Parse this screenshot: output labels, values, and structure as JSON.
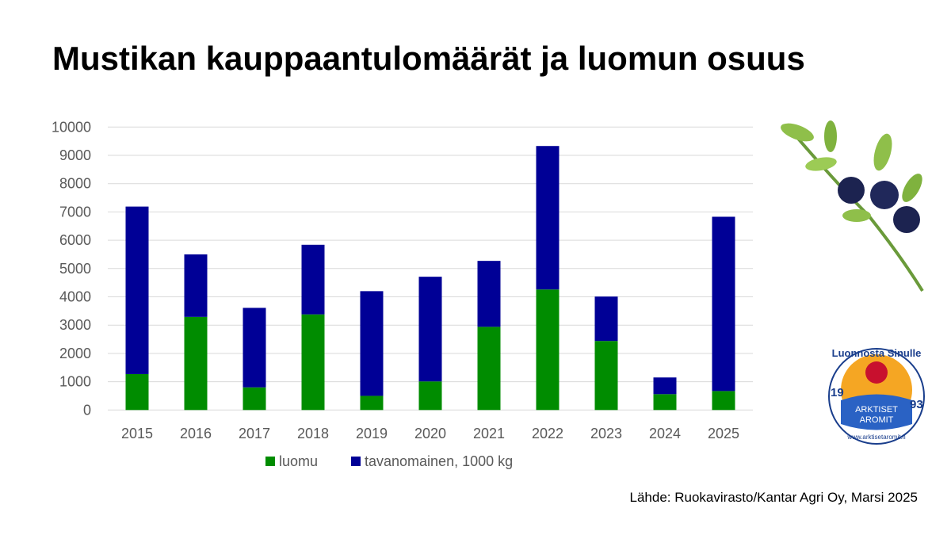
{
  "title": "Mustikan kauppaantulomäärät ja luomun osuus",
  "source": "Lähde: Ruokavirasto/Kantar Agri Oy, Marsi 2025",
  "logo": {
    "top_text": "Luonnosta Sinulle",
    "year_left": "19",
    "year_right": "93",
    "name_line1": "ARKTISET",
    "name_line2": "AROMIT",
    "url": "www.arktisetaromit.fi"
  },
  "chart_data": {
    "type": "bar",
    "stacked": true,
    "categories": [
      "2015",
      "2016",
      "2017",
      "2018",
      "2019",
      "2020",
      "2021",
      "2022",
      "2023",
      "2024",
      "2025"
    ],
    "series": [
      {
        "name": "luomu",
        "color": "#008c00",
        "values": [
          1270,
          3290,
          800,
          3380,
          500,
          1010,
          2940,
          4260,
          2440,
          560,
          670
        ]
      },
      {
        "name": "tavanomainen, 1000 kg",
        "color": "#000096",
        "values": [
          5920,
          2210,
          2810,
          2460,
          3700,
          3700,
          2330,
          5070,
          1570,
          590,
          6160
        ]
      }
    ],
    "ylim": [
      0,
      10000
    ],
    "yticks": [
      "0",
      "1000",
      "2000",
      "3000",
      "4000",
      "5000",
      "6000",
      "7000",
      "8000",
      "9000",
      "10000"
    ],
    "grid": true,
    "legend": "bottom"
  }
}
